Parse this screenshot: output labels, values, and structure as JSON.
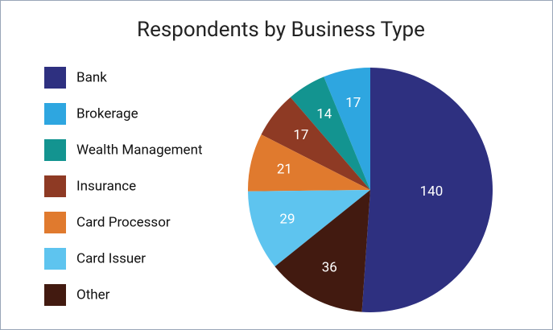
{
  "chart_data": {
    "type": "pie",
    "title": "Respondents by Business Type",
    "categories": [
      "Bank",
      "Brokerage",
      "Wealth Management",
      "Insurance",
      "Card Processor",
      "Card Issuer",
      "Other"
    ],
    "values": [
      140,
      17,
      14,
      17,
      21,
      29,
      36
    ],
    "colors": [
      "#2e3080",
      "#2ea6e0",
      "#139490",
      "#8e3a24",
      "#e07a2e",
      "#5ec4ef",
      "#421a10"
    ],
    "legend": "left"
  }
}
